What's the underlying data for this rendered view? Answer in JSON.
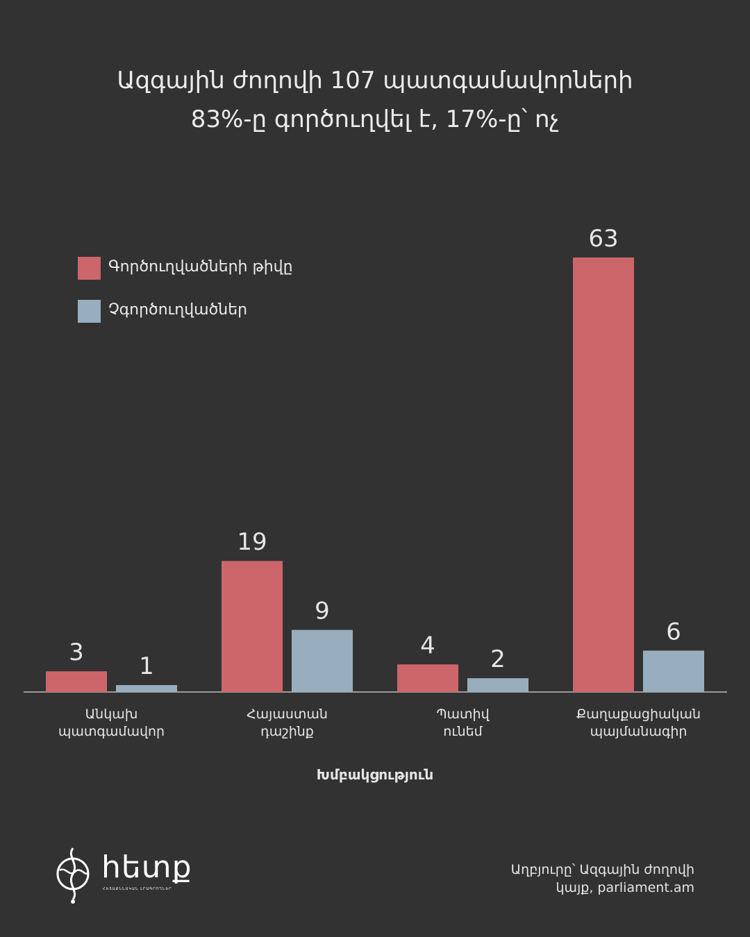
{
  "title": {
    "line1": "Ազգային ժողովի 107 պատգամավորների",
    "line2": "83%-ը գործուղվել է, 17%-ը՝ ոչ"
  },
  "colors": {
    "background": "#323232",
    "series_sent": "#cc666b",
    "series_not_sent": "#98aebe",
    "axis": "#9a9a9a"
  },
  "legend": {
    "items": [
      {
        "label": "Գործուղվածների թիվը",
        "color": "#cc666b"
      },
      {
        "label": "Չգործուղվածներ",
        "color": "#98aebe"
      }
    ]
  },
  "chart_data": {
    "type": "bar",
    "categories": [
      [
        "Անկախ",
        "պատգամավոր"
      ],
      [
        "Հայաստան",
        "դաշինք"
      ],
      [
        "Պատիվ",
        "ունեմ"
      ],
      [
        "Քաղաքացիական",
        "պայմանագիր"
      ]
    ],
    "series": [
      {
        "name": "Գործուղվածների թիվը",
        "values": [
          3,
          19,
          4,
          63
        ],
        "color": "#cc666b"
      },
      {
        "name": "Չգործուղվածներ",
        "values": [
          1,
          9,
          2,
          6
        ],
        "color": "#98aebe"
      }
    ],
    "xlabel": "Խմբակցություն",
    "ylabel": "",
    "ylim": [
      0,
      63
    ],
    "grid": false,
    "legend_position": "top-left",
    "data_labels": true
  },
  "logo": {
    "icon": "hetq-logo-icon",
    "wordmark": "հետք",
    "tagline": "ՀԵՏԱՔՆՆԱԿԱՆ ԼՐԱԳՐՈՂՆԵՐ"
  },
  "source": {
    "line1": "Աղբյուրը՝ Ազգային ժողովի",
    "line2": "կայք, parliament.am"
  }
}
